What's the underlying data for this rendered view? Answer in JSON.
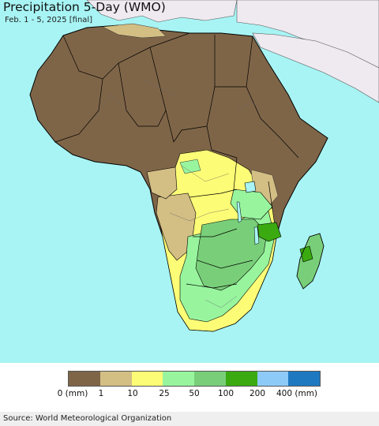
{
  "header": {
    "title": "Precipitation 5-Day (WMO)",
    "subtitle": "Feb. 1 - 5, 2025 [final]"
  },
  "map": {
    "ocean_color": "#a8f4f4",
    "outside_land_color": "#efe9f0",
    "border_color": "#000000"
  },
  "legend": {
    "colors": [
      "#7f6548",
      "#d3be84",
      "#fdfc76",
      "#98f59e",
      "#79cf79",
      "#3aaa10",
      "#8ecaf7",
      "#1e79c0"
    ],
    "ticks": [
      "0 (mm)",
      "1",
      "10",
      "25",
      "50",
      "100",
      "200",
      "400 (mm)"
    ]
  },
  "footer": {
    "source": "Source: World Meteorological Organization"
  }
}
